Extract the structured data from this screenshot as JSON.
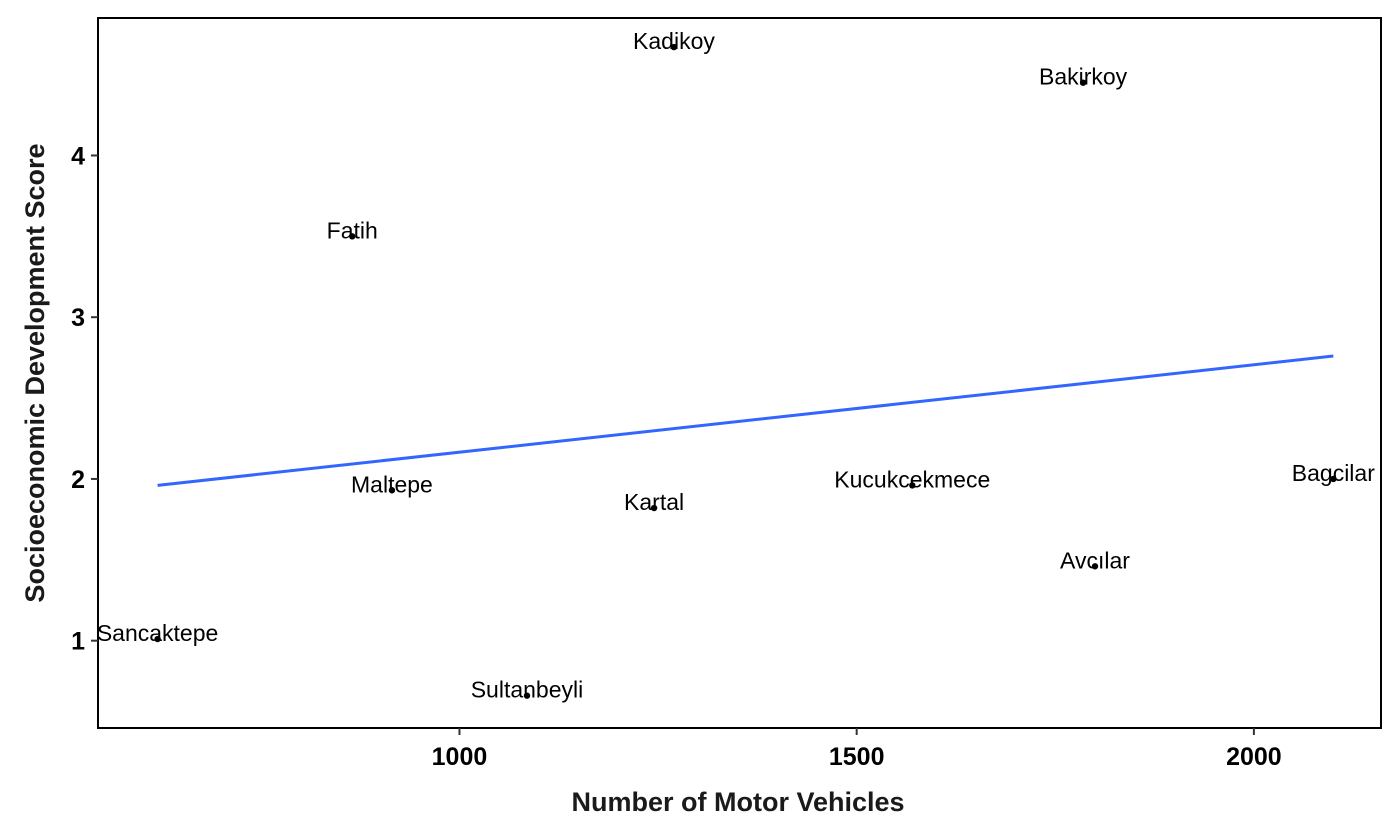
{
  "chart_data": {
    "type": "scatter",
    "title": "",
    "xlabel": "Number of Motor Vehicles",
    "ylabel": "Socioeconomic Development Score",
    "xlim": [
      545,
      2160
    ],
    "ylim": [
      0.46,
      4.85
    ],
    "xticks": [
      1000,
      1500,
      2000
    ],
    "yticks": [
      1,
      2,
      3,
      4
    ],
    "grid": false,
    "legend": "none",
    "colors": {
      "points": "#000000",
      "trend_line": "#3366ff",
      "axes": "#000000"
    },
    "points": [
      {
        "label": "Kadikoy",
        "x": 1270,
        "y": 4.67
      },
      {
        "label": "Bakirkoy",
        "x": 1785,
        "y": 4.45
      },
      {
        "label": "Fatih",
        "x": 865,
        "y": 3.5
      },
      {
        "label": "Maltepe",
        "x": 915,
        "y": 1.93
      },
      {
        "label": "Kartal",
        "x": 1245,
        "y": 1.82
      },
      {
        "label": "Kucukcekmece",
        "x": 1570,
        "y": 1.96
      },
      {
        "label": "Bagcilar",
        "x": 2100,
        "y": 2.0
      },
      {
        "label": "Avcılar",
        "x": 1800,
        "y": 1.46
      },
      {
        "label": "Sancaktepe",
        "x": 620,
        "y": 1.01
      },
      {
        "label": "Sultanbeyli",
        "x": 1085,
        "y": 0.66
      }
    ],
    "trend_line": {
      "type": "linear",
      "x": [
        620,
        2100
      ],
      "y": [
        1.96,
        2.76
      ]
    }
  }
}
